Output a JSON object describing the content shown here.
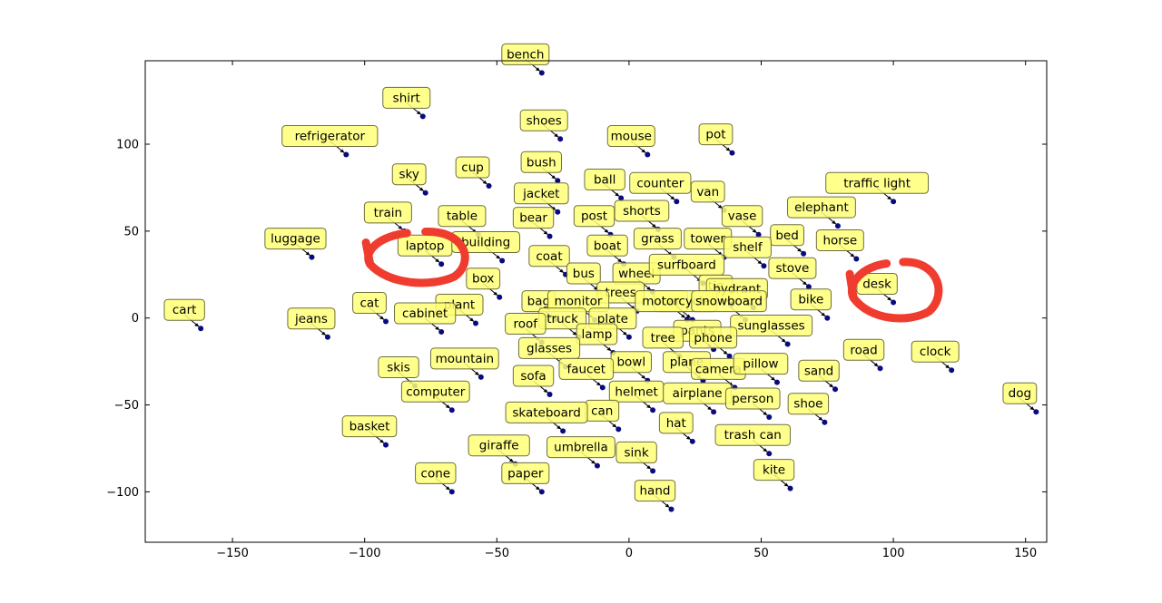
{
  "chart_data": {
    "type": "scatter",
    "title": "",
    "xlabel": "",
    "ylabel": "",
    "xlim": [
      -183,
      158
    ],
    "ylim": [
      -129,
      148
    ],
    "xticks": [
      -150,
      -100,
      -50,
      0,
      50,
      100,
      150
    ],
    "yticks": [
      -100,
      -50,
      0,
      50,
      100
    ],
    "grid": false,
    "colors": {
      "point": "#0a0a80",
      "label_fill": "#ffff77",
      "label_stroke": "#6e6e3c",
      "annotation": "#f03c2e"
    },
    "points": [
      {
        "label": "bench",
        "x": -33,
        "y": 141
      },
      {
        "label": "shirt",
        "x": -78,
        "y": 116
      },
      {
        "label": "shoes",
        "x": -26,
        "y": 103
      },
      {
        "label": "mouse",
        "x": 7,
        "y": 94
      },
      {
        "label": "pot",
        "x": 39,
        "y": 95
      },
      {
        "label": "refrigerator",
        "x": -107,
        "y": 94
      },
      {
        "label": "bush",
        "x": -27,
        "y": 79
      },
      {
        "label": "cup",
        "x": -53,
        "y": 76
      },
      {
        "label": "sky",
        "x": -77,
        "y": 72
      },
      {
        "label": "ball",
        "x": -3,
        "y": 69
      },
      {
        "label": "counter",
        "x": 18,
        "y": 67
      },
      {
        "label": "traffic light",
        "x": 100,
        "y": 67
      },
      {
        "label": "jacket",
        "x": -27,
        "y": 61
      },
      {
        "label": "van",
        "x": 36,
        "y": 62
      },
      {
        "label": "train",
        "x": -85,
        "y": 50
      },
      {
        "label": "table",
        "x": -57,
        "y": 48
      },
      {
        "label": "bear",
        "x": -30,
        "y": 47
      },
      {
        "label": "post",
        "x": -7,
        "y": 48
      },
      {
        "label": "shorts",
        "x": 11,
        "y": 51
      },
      {
        "label": "vase",
        "x": 49,
        "y": 48
      },
      {
        "label": "elephant",
        "x": 79,
        "y": 53
      },
      {
        "label": "luggage",
        "x": -120,
        "y": 35
      },
      {
        "label": "laptop",
        "x": -71,
        "y": 31
      },
      {
        "label": "building",
        "x": -48,
        "y": 33
      },
      {
        "label": "grass",
        "x": 17,
        "y": 35
      },
      {
        "label": "tower",
        "x": 36,
        "y": 35
      },
      {
        "label": "bed",
        "x": 66,
        "y": 37
      },
      {
        "label": "horse",
        "x": 86,
        "y": 34
      },
      {
        "label": "boat",
        "x": -2,
        "y": 31
      },
      {
        "label": "coat",
        "x": -24,
        "y": 25
      },
      {
        "label": "shelf",
        "x": 51,
        "y": 30
      },
      {
        "label": "bus",
        "x": -11,
        "y": 15
      },
      {
        "label": "stove",
        "x": 68,
        "y": 18
      },
      {
        "label": "wheel",
        "x": 9,
        "y": 15
      },
      {
        "label": "surfboard",
        "x": 28,
        "y": 20
      },
      {
        "label": "box",
        "x": -49,
        "y": 12
      },
      {
        "label": "desk",
        "x": 100,
        "y": 9
      },
      {
        "label": "trees",
        "x": 3,
        "y": 4
      },
      {
        "label": "tie",
        "x": 39,
        "y": 8
      },
      {
        "label": "hydrant",
        "x": 47,
        "y": 6
      },
      {
        "label": "bag",
        "x": -28,
        "y": -1
      },
      {
        "label": "monitor",
        "x": -13,
        "y": -1
      },
      {
        "label": "car",
        "x": 22,
        "y": -1
      },
      {
        "label": "bike",
        "x": 75,
        "y": 0
      },
      {
        "label": "cat",
        "x": -92,
        "y": -2
      },
      {
        "label": "plant",
        "x": -58,
        "y": -3
      },
      {
        "label": "cabinet",
        "x": -71,
        "y": -8
      },
      {
        "label": "motorcycle",
        "x": 24,
        "y": -1
      },
      {
        "label": "snowboard",
        "x": 44,
        "y": -1
      },
      {
        "label": "jeans",
        "x": -114,
        "y": -11
      },
      {
        "label": "truck",
        "x": -19,
        "y": -11
      },
      {
        "label": "plate",
        "x": 0,
        "y": -11
      },
      {
        "label": "cart",
        "x": -162,
        "y": -6
      },
      {
        "label": "roof",
        "x": -33,
        "y": -14
      },
      {
        "label": "pants",
        "x": 32,
        "y": -18
      },
      {
        "label": "sunglasses",
        "x": 60,
        "y": -15
      },
      {
        "label": "lamp",
        "x": -6,
        "y": -20
      },
      {
        "label": "tree",
        "x": 19,
        "y": -22
      },
      {
        "label": "phone",
        "x": 38,
        "y": -22
      },
      {
        "label": "glasses",
        "x": -24,
        "y": -28
      },
      {
        "label": "road",
        "x": 95,
        "y": -29
      },
      {
        "label": "clock",
        "x": 122,
        "y": -30
      },
      {
        "label": "mountain",
        "x": -56,
        "y": -34
      },
      {
        "label": "bowl",
        "x": 7,
        "y": -36
      },
      {
        "label": "plane",
        "x": 28,
        "y": -36
      },
      {
        "label": "camera",
        "x": 40,
        "y": -40
      },
      {
        "label": "pillow",
        "x": 56,
        "y": -37
      },
      {
        "label": "sand",
        "x": 78,
        "y": -41
      },
      {
        "label": "skis",
        "x": -81,
        "y": -39
      },
      {
        "label": "faucet",
        "x": -10,
        "y": -40
      },
      {
        "label": "sofa",
        "x": -30,
        "y": -44
      },
      {
        "label": "computer",
        "x": -67,
        "y": -53
      },
      {
        "label": "helmet",
        "x": 9,
        "y": -53
      },
      {
        "label": "airplane",
        "x": 32,
        "y": -54
      },
      {
        "label": "person",
        "x": 53,
        "y": -57
      },
      {
        "label": "shoe",
        "x": 74,
        "y": -60
      },
      {
        "label": "dog",
        "x": 154,
        "y": -54
      },
      {
        "label": "can",
        "x": -4,
        "y": -64
      },
      {
        "label": "skateboard",
        "x": -25,
        "y": -65
      },
      {
        "label": "basket",
        "x": -92,
        "y": -73
      },
      {
        "label": "hat",
        "x": 24,
        "y": -71
      },
      {
        "label": "trash can",
        "x": 53,
        "y": -78
      },
      {
        "label": "giraffe",
        "x": -43,
        "y": -84
      },
      {
        "label": "umbrella",
        "x": -12,
        "y": -85
      },
      {
        "label": "sink",
        "x": 9,
        "y": -88
      },
      {
        "label": "kite",
        "x": 61,
        "y": -98
      },
      {
        "label": "cone",
        "x": -67,
        "y": -100
      },
      {
        "label": "paper",
        "x": -33,
        "y": -100
      },
      {
        "label": "hand",
        "x": 16,
        "y": -110
      }
    ]
  }
}
